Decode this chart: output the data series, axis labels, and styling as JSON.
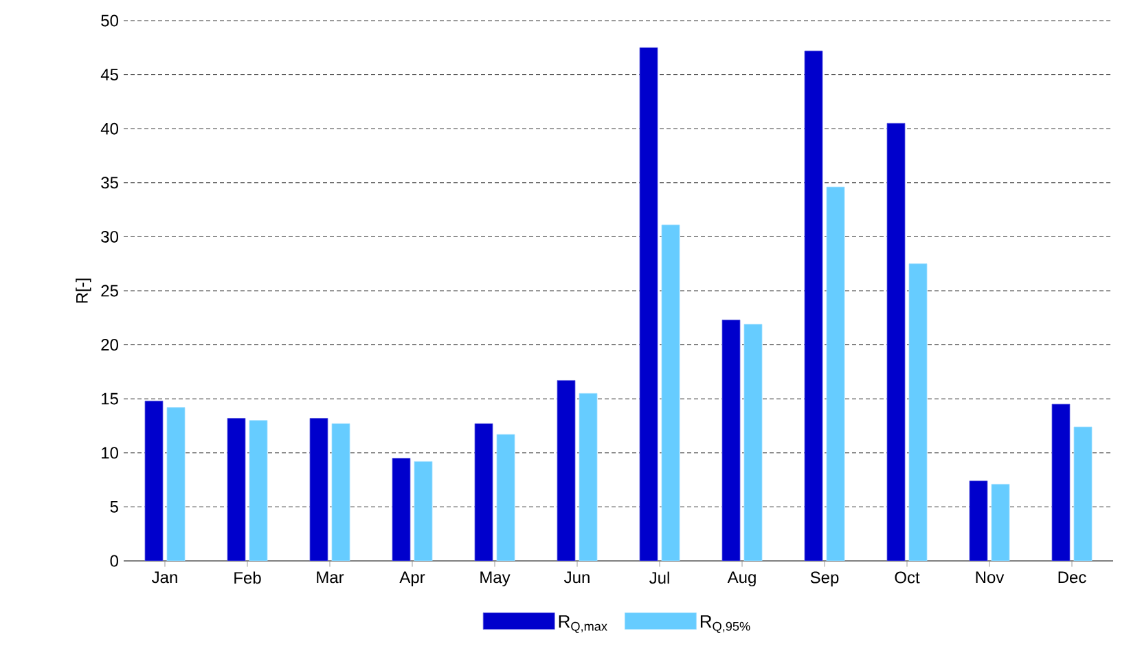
{
  "chart_data": {
    "type": "bar",
    "ylabel": "R[-]",
    "categories": [
      "Jan",
      "Feb",
      "Mar",
      "Apr",
      "May",
      "Jun",
      "Jul",
      "Aug",
      "Sep",
      "Oct",
      "Nov",
      "Dec"
    ],
    "series": [
      {
        "name": "R$_{Q,max}$",
        "color": "#0000cc",
        "values": [
          14.8,
          13.2,
          13.2,
          9.5,
          12.7,
          16.7,
          47.5,
          22.3,
          47.2,
          40.5,
          7.4,
          14.5
        ]
      },
      {
        "name": "R$_{Q,95%}$",
        "color": "#66ccff",
        "values": [
          14.2,
          13.0,
          12.7,
          9.2,
          11.7,
          15.5,
          31.1,
          21.9,
          34.6,
          27.5,
          7.1,
          12.4
        ]
      }
    ],
    "ylim": [
      0,
      50
    ],
    "yticks": [
      0,
      5,
      10,
      15,
      20,
      25,
      30,
      35,
      40,
      45,
      50
    ],
    "grid": "y",
    "legend": "bottom"
  }
}
